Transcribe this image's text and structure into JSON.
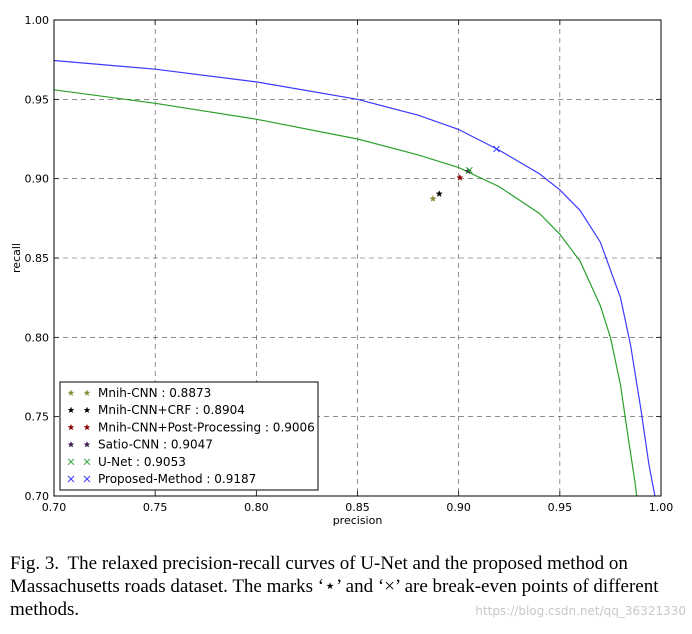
{
  "chart_data": {
    "type": "line",
    "title": "",
    "xlabel": "precision",
    "ylabel": "recall",
    "xlim": [
      0.7,
      1.0
    ],
    "ylim": [
      0.7,
      1.0
    ],
    "grid": true,
    "grid_style": "dashed",
    "xticks": [
      "0.70",
      "0.75",
      "0.80",
      "0.85",
      "0.90",
      "0.95",
      "1.00"
    ],
    "yticks": [
      "0.70",
      "0.75",
      "0.80",
      "0.85",
      "0.90",
      "0.95",
      "1.00"
    ],
    "legend_position": "bottom-left",
    "curves": [
      {
        "name": "U-Net",
        "color": "#2ca02c",
        "x": [
          0.7,
          0.75,
          0.8,
          0.85,
          0.88,
          0.9,
          0.92,
          0.94,
          0.95,
          0.96,
          0.97,
          0.975,
          0.98,
          0.984,
          0.987,
          0.988
        ],
        "y": [
          0.956,
          0.9475,
          0.9375,
          0.925,
          0.915,
          0.907,
          0.895,
          0.878,
          0.865,
          0.848,
          0.82,
          0.8,
          0.77,
          0.735,
          0.71,
          0.7
        ]
      },
      {
        "name": "Proposed-Method",
        "color": "#3a3aff",
        "x": [
          0.7,
          0.75,
          0.8,
          0.85,
          0.88,
          0.9,
          0.92,
          0.94,
          0.95,
          0.96,
          0.97,
          0.98,
          0.985,
          0.99,
          0.994,
          0.997
        ],
        "y": [
          0.9745,
          0.969,
          0.961,
          0.95,
          0.94,
          0.931,
          0.918,
          0.903,
          0.893,
          0.88,
          0.86,
          0.825,
          0.795,
          0.755,
          0.72,
          0.7
        ]
      }
    ],
    "break_even_points": [
      {
        "label": "Mnih-CNN : 0.8873",
        "marker": "star",
        "color": "#8a8a3a",
        "x": 0.8873,
        "y": 0.8873
      },
      {
        "label": "Mnih-CNN+CRF : 0.8904",
        "marker": "star",
        "color": "#000000",
        "x": 0.8904,
        "y": 0.8904
      },
      {
        "label": "Mnih-CNN+Post-Processing : 0.9006",
        "marker": "star",
        "color": "#8b0000",
        "x": 0.9006,
        "y": 0.9006
      },
      {
        "label": "Satio-CNN : 0.9047",
        "marker": "star",
        "color": "#3d1a4a",
        "x": 0.9047,
        "y": 0.9047
      },
      {
        "label": "U-Net : 0.9053",
        "marker": "x",
        "color": "#2ca02c",
        "x": 0.9053,
        "y": 0.9053
      },
      {
        "label": "Proposed-Method : 0.9187",
        "marker": "x",
        "color": "#3a3aff",
        "x": 0.9187,
        "y": 0.9187
      }
    ]
  },
  "caption": {
    "label": "Fig. 3.",
    "text": "The relaxed precision-recall curves of U-Net and the proposed method on Massachusetts roads dataset. The marks ‘⋆’ and ‘×’ are break-even points of different methods."
  },
  "watermark": "https://blog.csdn.net/qq_36321330"
}
